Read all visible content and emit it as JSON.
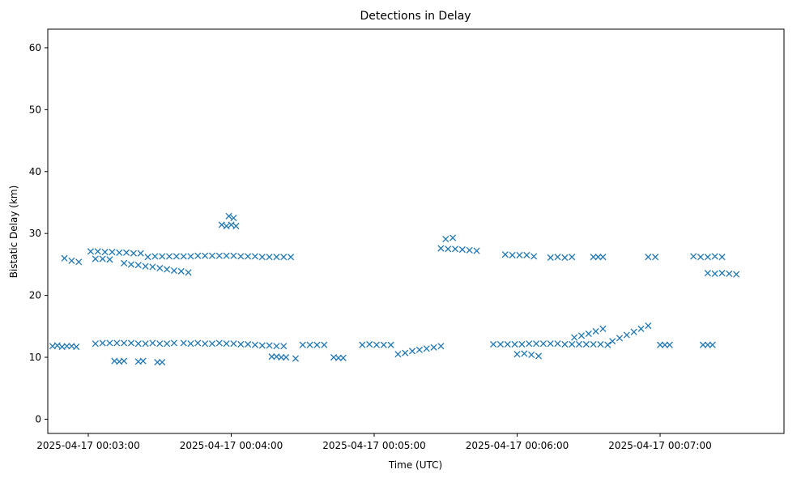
{
  "chart_data": {
    "type": "scatter",
    "title": "Detections in Delay",
    "xlabel": "Time (UTC)",
    "ylabel": "Bistatic Delay (km)",
    "marker": "x",
    "color": "#1f77b4",
    "grid": false,
    "legend": "none",
    "xlim": [
      "2025-04-17 00:02:43",
      "2025-04-17 00:07:52"
    ],
    "ylim": [
      -2.3,
      63
    ],
    "x_ticks": [
      "2025-04-17 00:03:00",
      "2025-04-17 00:04:00",
      "2025-04-17 00:05:00",
      "2025-04-17 00:06:00",
      "2025-04-17 00:07:00"
    ],
    "y_ticks": [
      "0",
      "10",
      "20",
      "30",
      "40",
      "50",
      "60"
    ],
    "series": [
      {
        "description_hidden": true,
        "points": [
          [
            "2025-04-17 00:02:45",
            11.8
          ],
          [
            "2025-04-17 00:02:47",
            11.9
          ],
          [
            "2025-04-17 00:02:49",
            11.7
          ],
          [
            "2025-04-17 00:02:51",
            11.8
          ],
          [
            "2025-04-17 00:02:53",
            11.8
          ],
          [
            "2025-04-17 00:02:55",
            11.7
          ],
          [
            "2025-04-17 00:03:03",
            12.2
          ],
          [
            "2025-04-17 00:03:06",
            12.3
          ],
          [
            "2025-04-17 00:03:09",
            12.3
          ],
          [
            "2025-04-17 00:03:12",
            12.3
          ],
          [
            "2025-04-17 00:03:15",
            12.3
          ],
          [
            "2025-04-17 00:03:18",
            12.3
          ],
          [
            "2025-04-17 00:03:21",
            12.2
          ],
          [
            "2025-04-17 00:03:24",
            12.2
          ],
          [
            "2025-04-17 00:03:27",
            12.3
          ],
          [
            "2025-04-17 00:03:30",
            12.2
          ],
          [
            "2025-04-17 00:03:33",
            12.2
          ],
          [
            "2025-04-17 00:03:36",
            12.3
          ],
          [
            "2025-04-17 00:03:40",
            12.3
          ],
          [
            "2025-04-17 00:03:43",
            12.2
          ],
          [
            "2025-04-17 00:03:46",
            12.3
          ],
          [
            "2025-04-17 00:03:49",
            12.2
          ],
          [
            "2025-04-17 00:03:52",
            12.2
          ],
          [
            "2025-04-17 00:03:55",
            12.3
          ],
          [
            "2025-04-17 00:03:58",
            12.2
          ],
          [
            "2025-04-17 00:04:01",
            12.2
          ],
          [
            "2025-04-17 00:04:04",
            12.1
          ],
          [
            "2025-04-17 00:04:07",
            12.1
          ],
          [
            "2025-04-17 00:04:10",
            12.0
          ],
          [
            "2025-04-17 00:04:13",
            11.9
          ],
          [
            "2025-04-17 00:04:16",
            11.9
          ],
          [
            "2025-04-17 00:04:19",
            11.8
          ],
          [
            "2025-04-17 00:04:22",
            11.8
          ],
          [
            "2025-04-17 00:04:30",
            12.0
          ],
          [
            "2025-04-17 00:04:33",
            12.0
          ],
          [
            "2025-04-17 00:04:36",
            12.0
          ],
          [
            "2025-04-17 00:04:39",
            12.0
          ],
          [
            "2025-04-17 00:04:55",
            12.0
          ],
          [
            "2025-04-17 00:04:58",
            12.1
          ],
          [
            "2025-04-17 00:05:01",
            12.0
          ],
          [
            "2025-04-17 00:05:04",
            12.0
          ],
          [
            "2025-04-17 00:05:07",
            12.0
          ],
          [
            "2025-04-17 00:05:50",
            12.1
          ],
          [
            "2025-04-17 00:05:53",
            12.1
          ],
          [
            "2025-04-17 00:05:56",
            12.1
          ],
          [
            "2025-04-17 00:05:59",
            12.1
          ],
          [
            "2025-04-17 00:06:02",
            12.1
          ],
          [
            "2025-04-17 00:06:05",
            12.2
          ],
          [
            "2025-04-17 00:06:08",
            12.2
          ],
          [
            "2025-04-17 00:06:11",
            12.2
          ],
          [
            "2025-04-17 00:06:14",
            12.2
          ],
          [
            "2025-04-17 00:06:17",
            12.2
          ],
          [
            "2025-04-17 00:06:20",
            12.1
          ],
          [
            "2025-04-17 00:06:23",
            12.1
          ],
          [
            "2025-04-17 00:06:26",
            12.1
          ],
          [
            "2025-04-17 00:06:29",
            12.1
          ],
          [
            "2025-04-17 00:06:32",
            12.1
          ],
          [
            "2025-04-17 00:06:35",
            12.1
          ],
          [
            "2025-04-17 00:06:38",
            12.0
          ],
          [
            "2025-04-17 00:07:00",
            12.0
          ],
          [
            "2025-04-17 00:07:02",
            12.0
          ],
          [
            "2025-04-17 00:07:04",
            12.0
          ],
          [
            "2025-04-17 00:07:18",
            12.0
          ],
          [
            "2025-04-17 00:07:20",
            12.0
          ],
          [
            "2025-04-17 00:07:22",
            12.0
          ],
          [
            "2025-04-17 00:03:11",
            9.4
          ],
          [
            "2025-04-17 00:03:13",
            9.3
          ],
          [
            "2025-04-17 00:03:15",
            9.4
          ],
          [
            "2025-04-17 00:03:21",
            9.3
          ],
          [
            "2025-04-17 00:03:23",
            9.4
          ],
          [
            "2025-04-17 00:03:29",
            9.2
          ],
          [
            "2025-04-17 00:03:31",
            9.2
          ],
          [
            "2025-04-17 00:04:17",
            10.1
          ],
          [
            "2025-04-17 00:04:19",
            10.1
          ],
          [
            "2025-04-17 00:04:21",
            10.0
          ],
          [
            "2025-04-17 00:04:23",
            10.0
          ],
          [
            "2025-04-17 00:04:27",
            9.8
          ],
          [
            "2025-04-17 00:04:43",
            10.0
          ],
          [
            "2025-04-17 00:04:45",
            9.9
          ],
          [
            "2025-04-17 00:04:47",
            9.9
          ],
          [
            "2025-04-17 00:05:10",
            10.5
          ],
          [
            "2025-04-17 00:05:13",
            10.7
          ],
          [
            "2025-04-17 00:05:16",
            11.0
          ],
          [
            "2025-04-17 00:05:19",
            11.2
          ],
          [
            "2025-04-17 00:05:22",
            11.4
          ],
          [
            "2025-04-17 00:05:25",
            11.6
          ],
          [
            "2025-04-17 00:05:28",
            11.8
          ],
          [
            "2025-04-17 00:06:00",
            10.5
          ],
          [
            "2025-04-17 00:06:03",
            10.6
          ],
          [
            "2025-04-17 00:06:06",
            10.4
          ],
          [
            "2025-04-17 00:06:09",
            10.2
          ],
          [
            "2025-04-17 00:06:40",
            12.6
          ],
          [
            "2025-04-17 00:06:43",
            13.1
          ],
          [
            "2025-04-17 00:06:46",
            13.6
          ],
          [
            "2025-04-17 00:06:49",
            14.1
          ],
          [
            "2025-04-17 00:06:52",
            14.6
          ],
          [
            "2025-04-17 00:06:55",
            15.1
          ],
          [
            "2025-04-17 00:06:24",
            13.2
          ],
          [
            "2025-04-17 00:06:27",
            13.5
          ],
          [
            "2025-04-17 00:06:30",
            13.8
          ],
          [
            "2025-04-17 00:06:33",
            14.2
          ],
          [
            "2025-04-17 00:06:36",
            14.6
          ],
          [
            "2025-04-17 00:02:50",
            26.0
          ],
          [
            "2025-04-17 00:02:53",
            25.6
          ],
          [
            "2025-04-17 00:02:56",
            25.4
          ],
          [
            "2025-04-17 00:03:01",
            27.1
          ],
          [
            "2025-04-17 00:03:04",
            27.1
          ],
          [
            "2025-04-17 00:03:07",
            27.0
          ],
          [
            "2025-04-17 00:03:10",
            27.0
          ],
          [
            "2025-04-17 00:03:13",
            26.9
          ],
          [
            "2025-04-17 00:03:16",
            26.9
          ],
          [
            "2025-04-17 00:03:19",
            26.8
          ],
          [
            "2025-04-17 00:03:22",
            26.8
          ],
          [
            "2025-04-17 00:03:03",
            25.9
          ],
          [
            "2025-04-17 00:03:06",
            25.9
          ],
          [
            "2025-04-17 00:03:09",
            25.8
          ],
          [
            "2025-04-17 00:03:15",
            25.2
          ],
          [
            "2025-04-17 00:03:18",
            25.0
          ],
          [
            "2025-04-17 00:03:21",
            24.9
          ],
          [
            "2025-04-17 00:03:24",
            24.7
          ],
          [
            "2025-04-17 00:03:27",
            24.6
          ],
          [
            "2025-04-17 00:03:30",
            24.4
          ],
          [
            "2025-04-17 00:03:33",
            24.2
          ],
          [
            "2025-04-17 00:03:36",
            24.0
          ],
          [
            "2025-04-17 00:03:39",
            23.9
          ],
          [
            "2025-04-17 00:03:42",
            23.7
          ],
          [
            "2025-04-17 00:03:25",
            26.2
          ],
          [
            "2025-04-17 00:03:28",
            26.3
          ],
          [
            "2025-04-17 00:03:31",
            26.3
          ],
          [
            "2025-04-17 00:03:34",
            26.3
          ],
          [
            "2025-04-17 00:03:37",
            26.3
          ],
          [
            "2025-04-17 00:03:40",
            26.3
          ],
          [
            "2025-04-17 00:03:43",
            26.3
          ],
          [
            "2025-04-17 00:03:46",
            26.4
          ],
          [
            "2025-04-17 00:03:49",
            26.4
          ],
          [
            "2025-04-17 00:03:52",
            26.4
          ],
          [
            "2025-04-17 00:03:55",
            26.4
          ],
          [
            "2025-04-17 00:03:58",
            26.4
          ],
          [
            "2025-04-17 00:04:01",
            26.4
          ],
          [
            "2025-04-17 00:04:04",
            26.3
          ],
          [
            "2025-04-17 00:04:07",
            26.3
          ],
          [
            "2025-04-17 00:04:10",
            26.3
          ],
          [
            "2025-04-17 00:04:13",
            26.2
          ],
          [
            "2025-04-17 00:04:16",
            26.2
          ],
          [
            "2025-04-17 00:04:19",
            26.2
          ],
          [
            "2025-04-17 00:04:22",
            26.2
          ],
          [
            "2025-04-17 00:04:25",
            26.2
          ],
          [
            "2025-04-17 00:03:56",
            31.4
          ],
          [
            "2025-04-17 00:03:58",
            31.2
          ],
          [
            "2025-04-17 00:04:00",
            31.4
          ],
          [
            "2025-04-17 00:04:02",
            31.2
          ],
          [
            "2025-04-17 00:03:59",
            32.8
          ],
          [
            "2025-04-17 00:04:01",
            32.5
          ],
          [
            "2025-04-17 00:05:28",
            27.6
          ],
          [
            "2025-04-17 00:05:31",
            27.5
          ],
          [
            "2025-04-17 00:05:34",
            27.5
          ],
          [
            "2025-04-17 00:05:37",
            27.4
          ],
          [
            "2025-04-17 00:05:40",
            27.3
          ],
          [
            "2025-04-17 00:05:43",
            27.2
          ],
          [
            "2025-04-17 00:05:30",
            29.1
          ],
          [
            "2025-04-17 00:05:33",
            29.3
          ],
          [
            "2025-04-17 00:05:55",
            26.6
          ],
          [
            "2025-04-17 00:05:58",
            26.5
          ],
          [
            "2025-04-17 00:06:01",
            26.5
          ],
          [
            "2025-04-17 00:06:04",
            26.5
          ],
          [
            "2025-04-17 00:06:07",
            26.3
          ],
          [
            "2025-04-17 00:06:14",
            26.1
          ],
          [
            "2025-04-17 00:06:17",
            26.2
          ],
          [
            "2025-04-17 00:06:20",
            26.1
          ],
          [
            "2025-04-17 00:06:23",
            26.2
          ],
          [
            "2025-04-17 00:06:32",
            26.2
          ],
          [
            "2025-04-17 00:06:34",
            26.2
          ],
          [
            "2025-04-17 00:06:36",
            26.2
          ],
          [
            "2025-04-17 00:06:55",
            26.2
          ],
          [
            "2025-04-17 00:06:58",
            26.2
          ],
          [
            "2025-04-17 00:07:14",
            26.3
          ],
          [
            "2025-04-17 00:07:17",
            26.2
          ],
          [
            "2025-04-17 00:07:20",
            26.2
          ],
          [
            "2025-04-17 00:07:23",
            26.3
          ],
          [
            "2025-04-17 00:07:26",
            26.2
          ],
          [
            "2025-04-17 00:07:20",
            23.6
          ],
          [
            "2025-04-17 00:07:23",
            23.5
          ],
          [
            "2025-04-17 00:07:26",
            23.6
          ],
          [
            "2025-04-17 00:07:29",
            23.5
          ],
          [
            "2025-04-17 00:07:32",
            23.4
          ]
        ]
      }
    ]
  }
}
